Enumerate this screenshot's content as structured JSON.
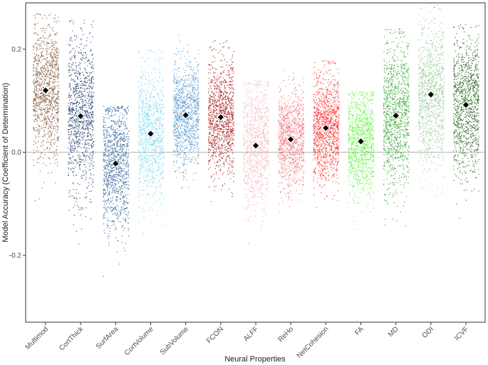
{
  "chart_data": {
    "type": "scatter",
    "subtype": "jittered strip plot with mean markers",
    "xlabel": "Neural Properties",
    "ylabel": "Model Accuracy (Coefficient of Determination)",
    "ylim": [
      -0.33,
      0.29
    ],
    "yticks": [
      -0.2,
      0.0,
      0.2
    ],
    "ytick_labels": [
      "-0.2",
      "0.0",
      "0.2"
    ],
    "reference_line": 0,
    "grid": false,
    "categories": [
      "Multimod",
      "CortThick",
      "SurfArea",
      "CortVolume",
      "SubVolume",
      "FCON",
      "ALFF",
      "ReHo",
      "NetCohesion",
      "FA",
      "MD",
      "ODI",
      "ICVF"
    ],
    "series": [
      {
        "category": "Multimod",
        "color": "#7a4e2d",
        "mean": 0.12,
        "min": -0.12,
        "max": 0.27
      },
      {
        "category": "CortThick",
        "color": "#1f3b6b",
        "mean": 0.07,
        "min": -0.2,
        "max": 0.26
      },
      {
        "category": "SurfArea",
        "color": "#2e5f96",
        "mean": -0.022,
        "min": -0.31,
        "max": 0.09
      },
      {
        "category": "CortVolume",
        "color": "#7fd8ec",
        "mean": 0.036,
        "min": -0.19,
        "max": 0.2
      },
      {
        "category": "SubVolume",
        "color": "#4f94cd",
        "mean": 0.072,
        "min": -0.07,
        "max": 0.25
      },
      {
        "category": "FCON",
        "color": "#a81818",
        "mean": 0.068,
        "min": -0.12,
        "max": 0.22
      },
      {
        "category": "ALFF",
        "color": "#f2b8be",
        "mean": 0.013,
        "min": -0.24,
        "max": 0.14
      },
      {
        "category": "ReHo",
        "color": "#ee7278",
        "mean": 0.025,
        "min": -0.14,
        "max": 0.16
      },
      {
        "category": "NetCohesion",
        "color": "#ff1c1c",
        "mean": 0.047,
        "min": -0.14,
        "max": 0.18
      },
      {
        "category": "FA",
        "color": "#5ef23c",
        "mean": 0.021,
        "min": -0.19,
        "max": 0.12
      },
      {
        "category": "MD",
        "color": "#2c9e28",
        "mean": 0.071,
        "min": -0.21,
        "max": 0.24
      },
      {
        "category": "ODI",
        "color": "#94c994",
        "mean": 0.112,
        "min": -0.13,
        "max": 0.29
      },
      {
        "category": "ICVF",
        "color": "#1c5c12",
        "mean": 0.092,
        "min": -0.15,
        "max": 0.25
      }
    ]
  }
}
